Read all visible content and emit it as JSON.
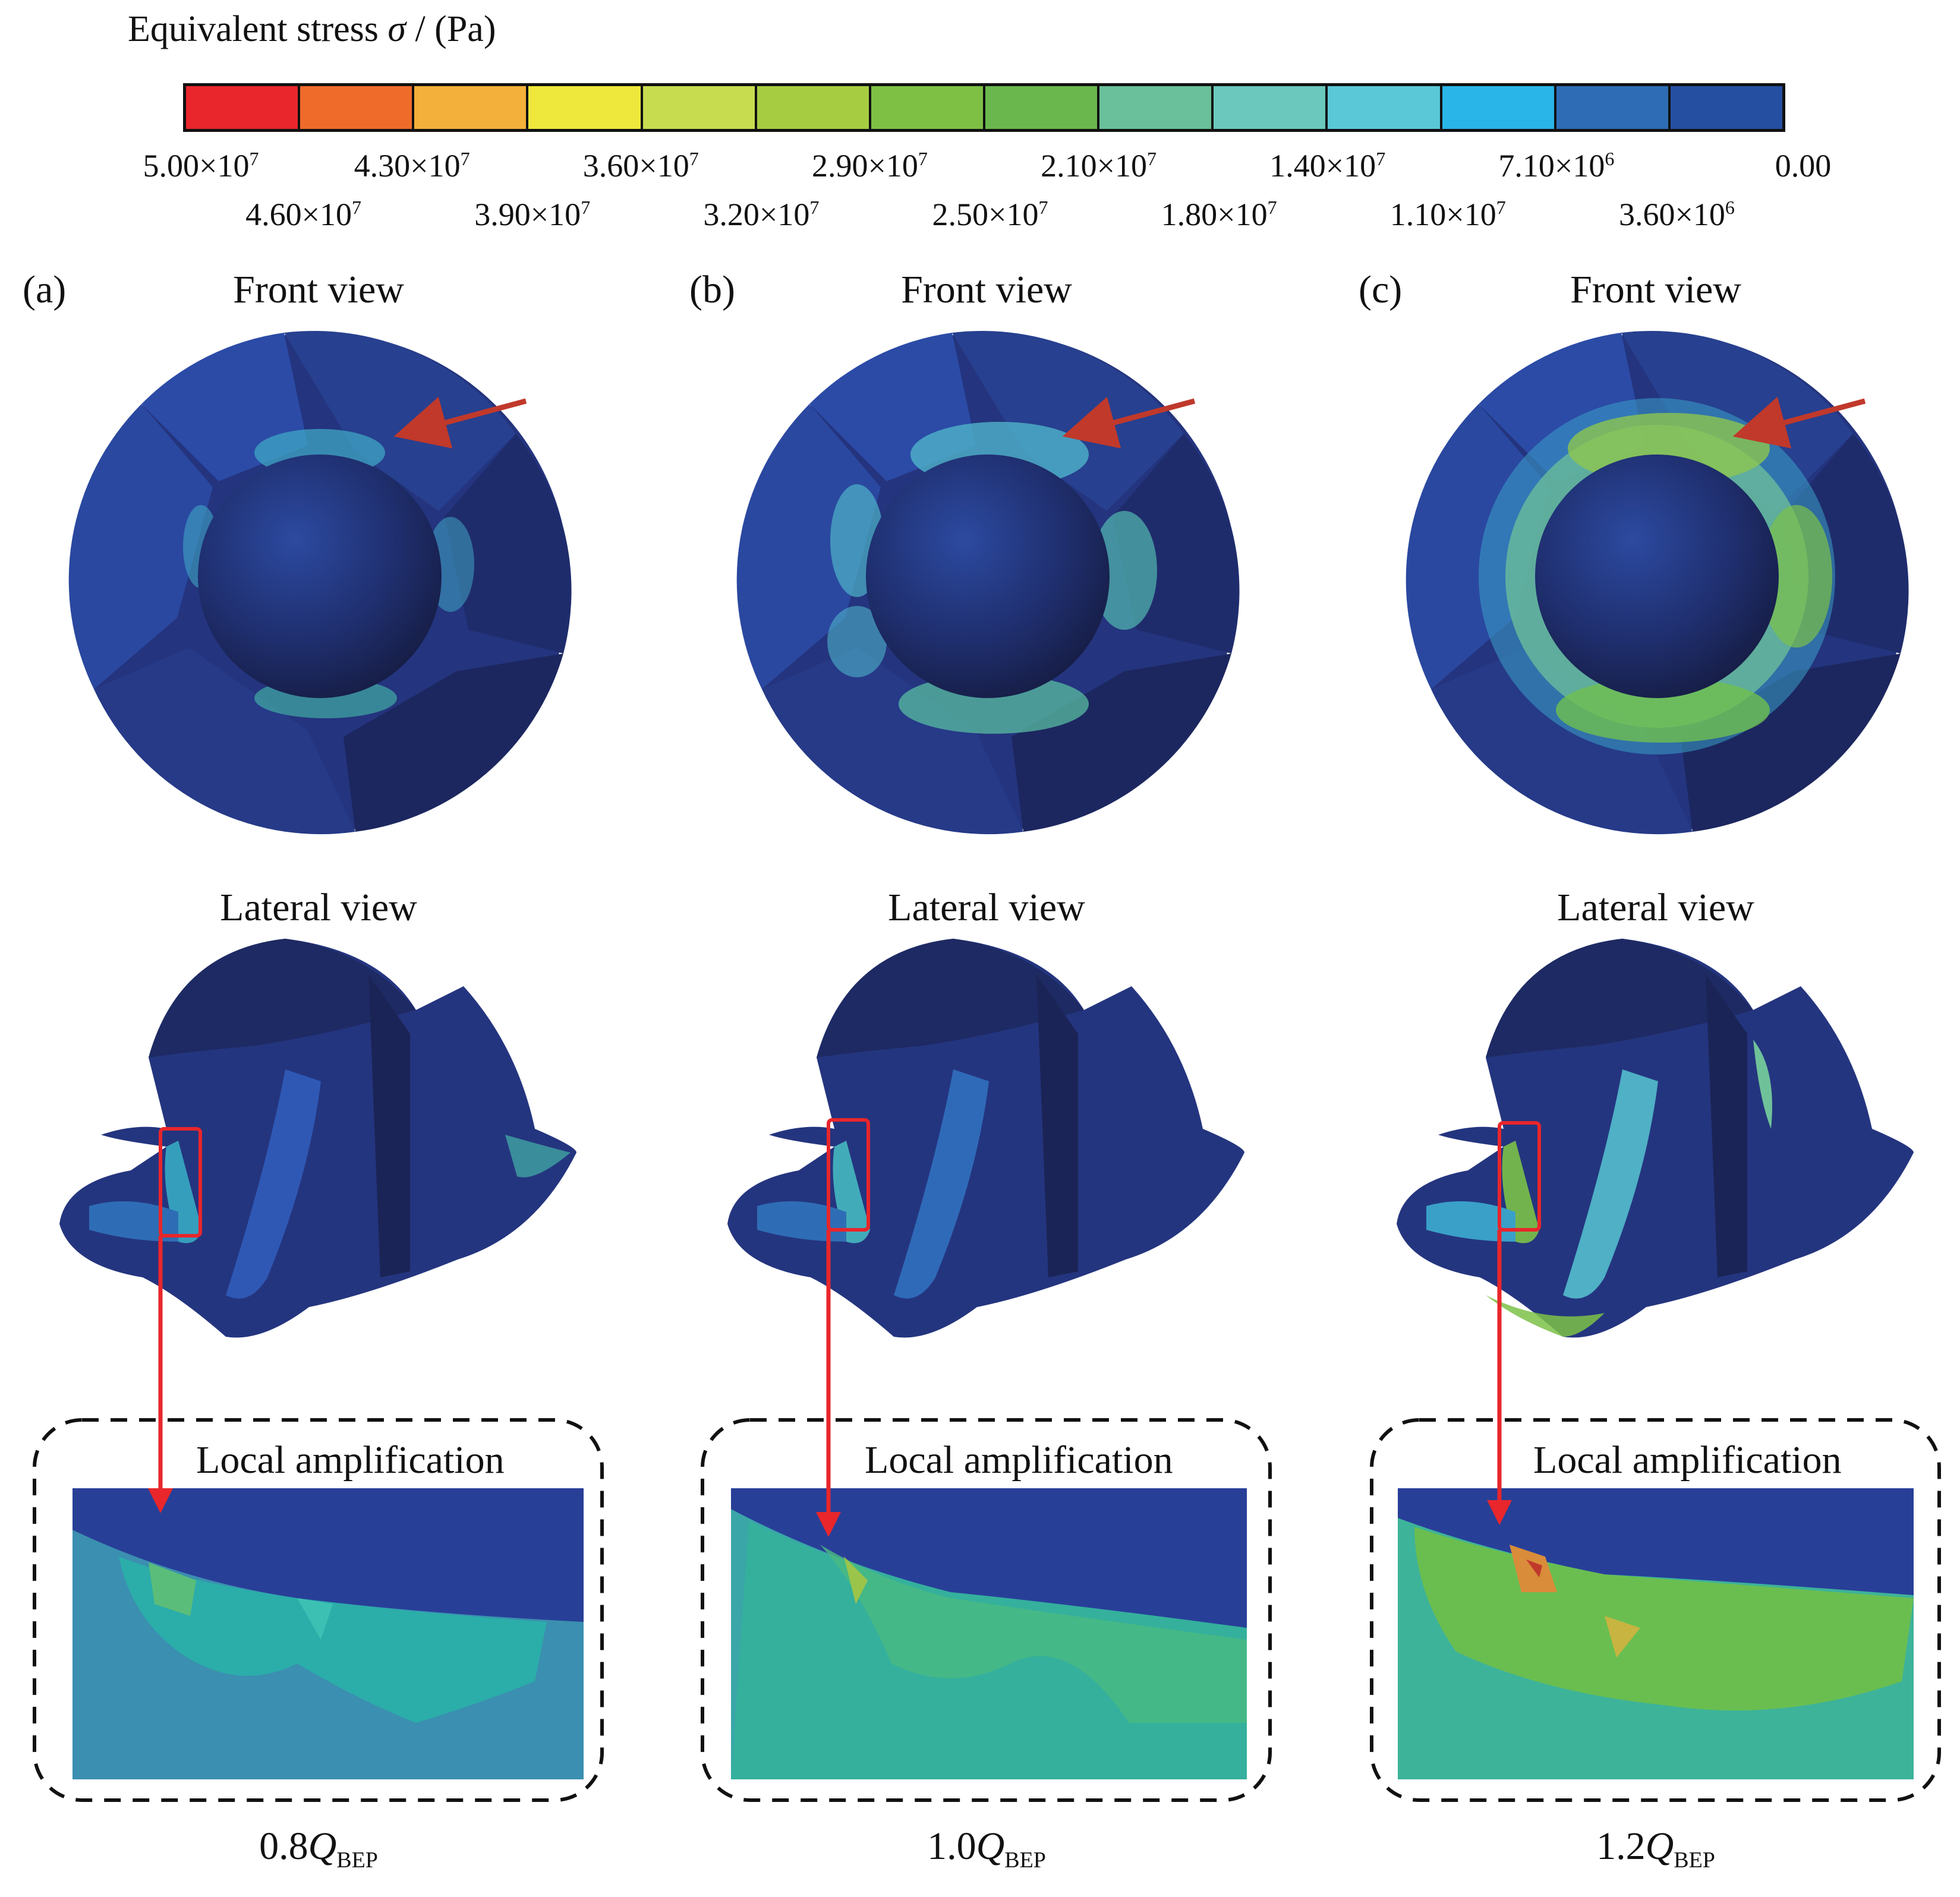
{
  "legend": {
    "title_prefix": "Equivalent stress ",
    "title_symbol": "σ",
    "title_suffix": " / (Pa)",
    "colors": [
      "#e8262b",
      "#ef6b2a",
      "#f3b03a",
      "#eee73c",
      "#c8dc4f",
      "#a6cc42",
      "#7dc044",
      "#6ab84d",
      "#69c09a",
      "#6ac8bc",
      "#5ac8d6",
      "#29b5e8",
      "#2e6db5",
      "#2550a2"
    ],
    "ticks_top": [
      {
        "mant": "5.00×10",
        "exp": "7"
      },
      {
        "mant": "4.30×10",
        "exp": "7"
      },
      {
        "mant": "3.60×10",
        "exp": "7"
      },
      {
        "mant": "2.90×10",
        "exp": "7"
      },
      {
        "mant": "2.10×10",
        "exp": "7"
      },
      {
        "mant": "1.40×10",
        "exp": "7"
      },
      {
        "mant": "7.10×10",
        "exp": "6"
      },
      {
        "mant": "0.00",
        "exp": ""
      }
    ],
    "ticks_bottom": [
      {
        "mant": "4.60×10",
        "exp": "7"
      },
      {
        "mant": "3.90×10",
        "exp": "7"
      },
      {
        "mant": "3.20×10",
        "exp": "7"
      },
      {
        "mant": "2.50×10",
        "exp": "7"
      },
      {
        "mant": "1.80×10",
        "exp": "7"
      },
      {
        "mant": "1.10×10",
        "exp": "7"
      },
      {
        "mant": "3.60×10",
        "exp": "6"
      }
    ]
  },
  "panels": [
    {
      "letter": "(a)",
      "front_label": "Front view",
      "lateral_label": "Lateral view",
      "amp_label": "Local amplification",
      "flow_prefix": "0.8",
      "flow_q": "Q",
      "flow_sub": "BEP"
    },
    {
      "letter": "(b)",
      "front_label": "Front view",
      "lateral_label": "Lateral view",
      "amp_label": "Local amplification",
      "flow_prefix": "1.0",
      "flow_q": "Q",
      "flow_sub": "BEP"
    },
    {
      "letter": "(c)",
      "front_label": "Front view",
      "lateral_label": "Lateral view",
      "amp_label": "Local amplification",
      "flow_prefix": "1.2",
      "flow_q": "Q",
      "flow_sub": "BEP"
    }
  ],
  "accent_colors": {
    "arrow": "#c0392b",
    "connector": "#e8262b",
    "dark_blue": "#1f2a5c",
    "mid_blue": "#2a4ea0"
  }
}
